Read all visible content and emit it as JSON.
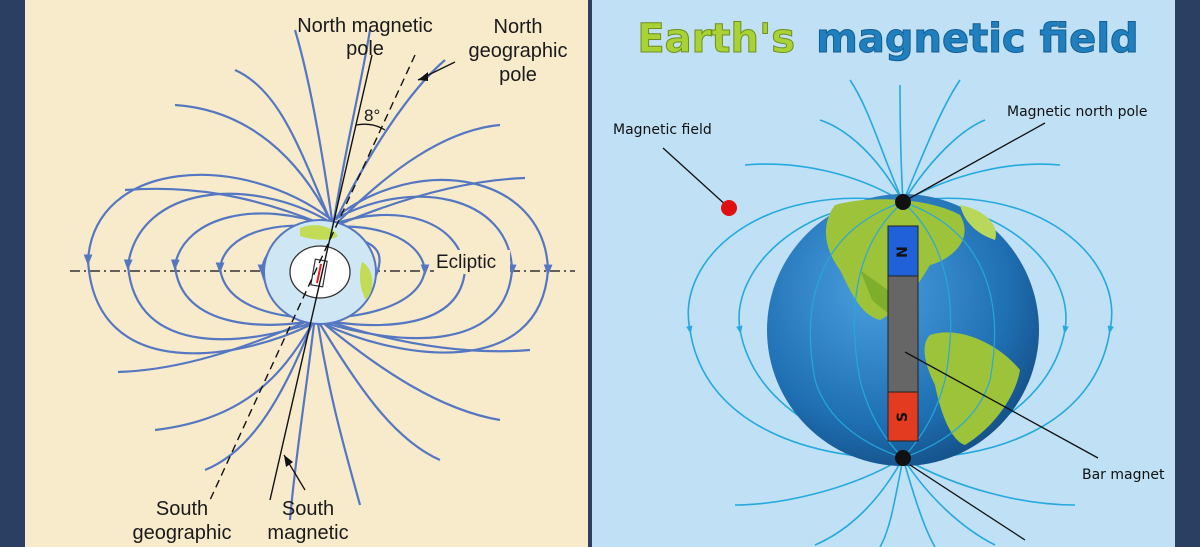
{
  "left_panel": {
    "labels": {
      "north_magnetic_pole": [
        "North magnetic",
        "pole"
      ],
      "north_geographic_pole": [
        "North",
        "geographic",
        "pole"
      ],
      "angle": "8°",
      "ecliptic": "Ecliptic",
      "south_geographic": [
        "South",
        "geographic"
      ],
      "south_magnetic": [
        "South",
        "magnetic"
      ]
    }
  },
  "right_panel": {
    "title_part1": "Earth's",
    "title_part2": "magnetic field",
    "labels": {
      "magnetic_field": "Magnetic field",
      "magnetic_north_pole": "Magnetic north pole",
      "bar_magnet": "Bar magnet"
    },
    "magnet": {
      "north": "N",
      "south": "S"
    }
  },
  "colors": {
    "left_bg": "#f8ebcc",
    "right_bg": "#bfe0f5",
    "frame": "#2b3f63",
    "left_field_line": "#5577c2",
    "right_field_line": "#25a9de",
    "ocean": "#1f6fb3",
    "land": "#9cc33a",
    "magnet_north": "#2060d8",
    "magnet_south": "#e23b1f",
    "magnet_body": "#666666",
    "marker_red": "#e01010"
  }
}
